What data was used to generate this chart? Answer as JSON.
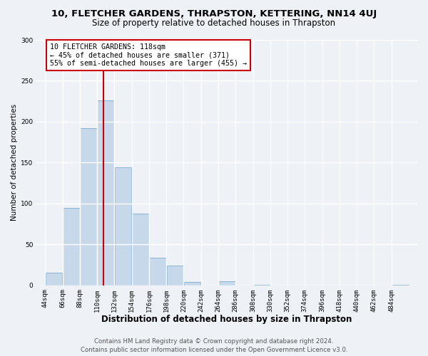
{
  "title": "10, FLETCHER GARDENS, THRAPSTON, KETTERING, NN14 4UJ",
  "subtitle": "Size of property relative to detached houses in Thrapston",
  "xlabel": "Distribution of detached houses by size in Thrapston",
  "ylabel": "Number of detached properties",
  "bin_labels": [
    "44sqm",
    "66sqm",
    "88sqm",
    "110sqm",
    "132sqm",
    "154sqm",
    "176sqm",
    "198sqm",
    "220sqm",
    "242sqm",
    "264sqm",
    "286sqm",
    "308sqm",
    "330sqm",
    "352sqm",
    "374sqm",
    "396sqm",
    "418sqm",
    "440sqm",
    "462sqm",
    "484sqm"
  ],
  "bin_edges": [
    44,
    66,
    88,
    110,
    132,
    154,
    176,
    198,
    220,
    242,
    264,
    286,
    308,
    330,
    352,
    374,
    396,
    418,
    440,
    462,
    484,
    506
  ],
  "bar_heights": [
    15,
    95,
    192,
    226,
    144,
    88,
    34,
    24,
    4,
    0,
    5,
    0,
    1,
    0,
    0,
    0,
    0,
    0,
    0,
    0,
    1
  ],
  "bar_color": "#c8d8eb",
  "bar_edgecolor": "#8ab4d4",
  "ylim": [
    0,
    300
  ],
  "yticks": [
    0,
    50,
    100,
    150,
    200,
    250,
    300
  ],
  "property_size": 118,
  "vline_color": "#cc0000",
  "annotation_line1": "10 FLETCHER GARDENS: 118sqm",
  "annotation_line2": "← 45% of detached houses are smaller (371)",
  "annotation_line3": "55% of semi-detached houses are larger (455) →",
  "annotation_box_color": "#ffffff",
  "annotation_box_edgecolor": "#cc0000",
  "footer_line1": "Contains HM Land Registry data © Crown copyright and database right 2024.",
  "footer_line2": "Contains public sector information licensed under the Open Government Licence v3.0.",
  "background_color": "#eef2f7",
  "grid_color": "#ffffff",
  "title_fontsize": 9.5,
  "subtitle_fontsize": 8.5,
  "xlabel_fontsize": 8.5,
  "ylabel_fontsize": 7.5,
  "tick_fontsize": 6.5,
  "annotation_fontsize": 7.2,
  "footer_fontsize": 6.2
}
